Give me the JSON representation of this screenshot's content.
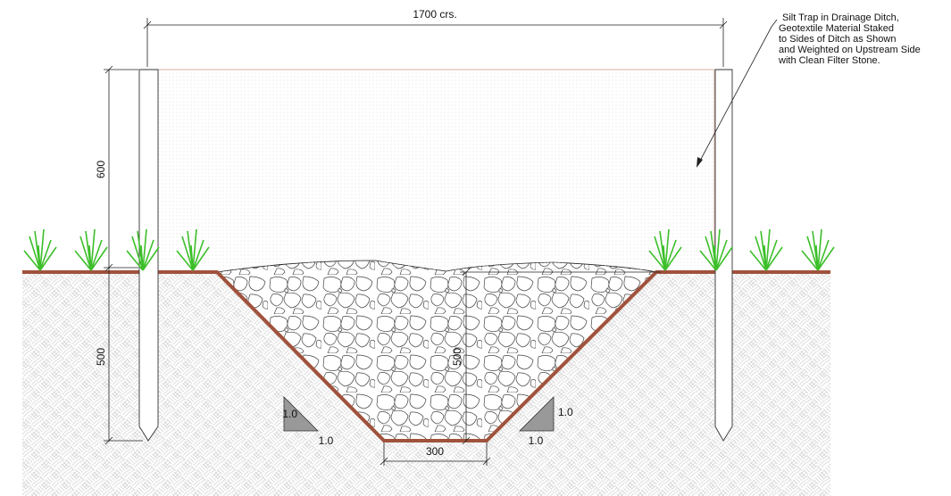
{
  "dimensions": {
    "overall_width": "1700 crs.",
    "post_above_ground": "600",
    "post_embedment": "500",
    "ditch_depth": "500",
    "base_width": "300"
  },
  "slopes": [
    {
      "rise": "1.0",
      "run": "1.0"
    },
    {
      "rise": "1.0",
      "run": "1.0"
    }
  ],
  "note": {
    "lines": [
      "Silt Trap in Drainage Ditch,",
      "Geotextile Material Staked",
      "to Sides of Ditch as Shown",
      "and Weighted on Upstream Side",
      "with Clean Filter Stone."
    ]
  }
}
